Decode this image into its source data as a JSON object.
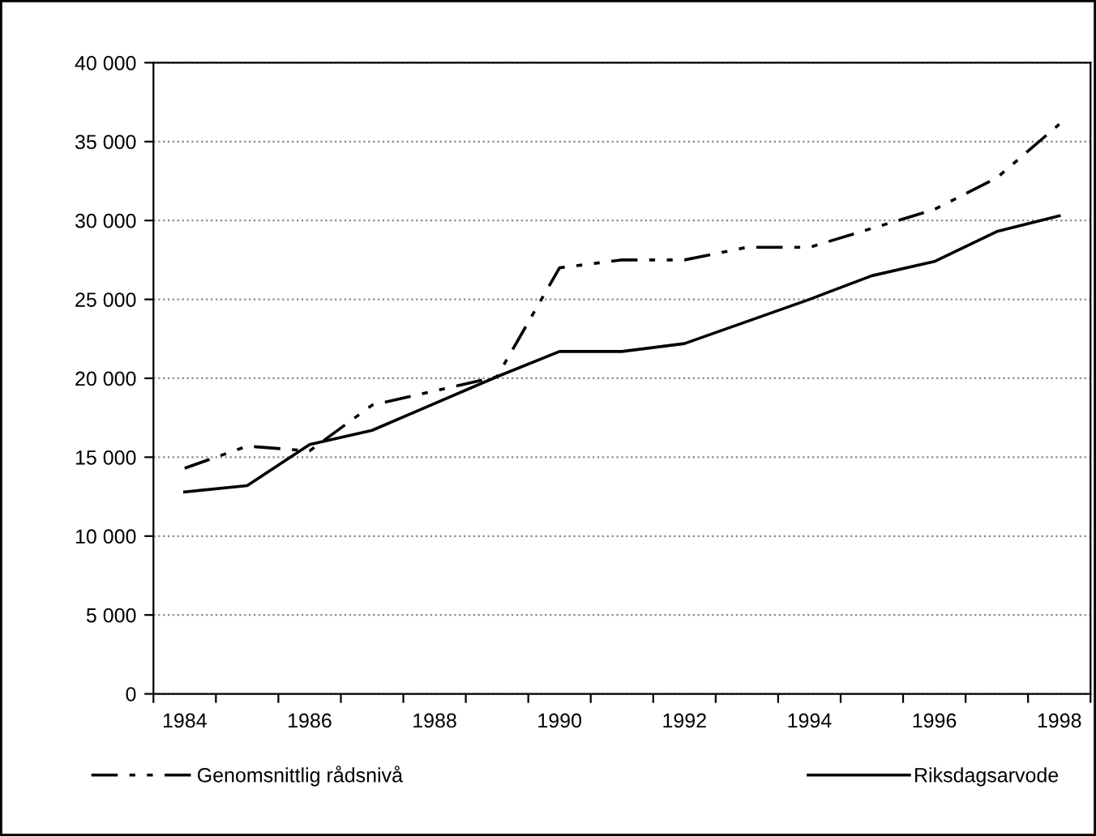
{
  "chart_data": {
    "type": "line",
    "categories": [
      "1984",
      null,
      "1986",
      null,
      "1988",
      null,
      "1990",
      null,
      "1992",
      null,
      "1994",
      null,
      "1996",
      null,
      "1998"
    ],
    "series": [
      {
        "name": "Genomsnittlig rådsnivå",
        "color": "#000000",
        "line_style": "dashed",
        "values": [
          14300,
          15700,
          15400,
          18300,
          19200,
          20100,
          27000,
          27500,
          27500,
          28300,
          28300,
          29500,
          30700,
          32700,
          36100
        ]
      },
      {
        "name": "Riksdagsarvode",
        "color": "#000000",
        "line_style": "solid",
        "values": [
          12800,
          13200,
          15800,
          16700,
          18400,
          20100,
          21700,
          21700,
          22200,
          23600,
          25000,
          26500,
          27400,
          29300,
          30300
        ]
      }
    ],
    "ylim": [
      0,
      40000
    ],
    "yticks": [
      0,
      {
        "value": 5000,
        "label": "5 000"
      },
      {
        "value": 10000,
        "label": "10 000"
      },
      {
        "value": 15000,
        "label": "15 000"
      },
      {
        "value": 20000,
        "label": "20 000"
      },
      {
        "value": 25000,
        "label": "25 000"
      },
      {
        "value": 30000,
        "label": "30 000"
      },
      {
        "value": 35000,
        "label": "35 000"
      },
      {
        "value": 40000,
        "label": "40 000"
      }
    ],
    "grid": "y",
    "legend": "bottom",
    "marker": "none"
  }
}
